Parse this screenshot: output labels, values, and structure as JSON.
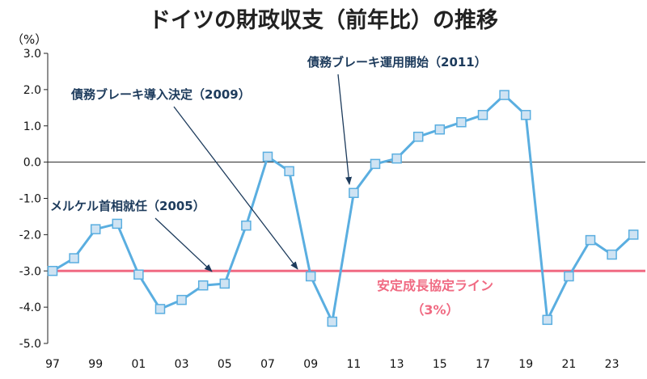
{
  "chart_data": {
    "type": "line",
    "title": "ドイツの財政収支（前年比）の推移",
    "yunit": "（%）",
    "ylim": [
      -5.0,
      3.0
    ],
    "yticks": [
      "3.0",
      "2.0",
      "1.0",
      "0.0",
      "-1.0",
      "-2.0",
      "-3.0",
      "-4.0",
      "-5.0"
    ],
    "ytick_values": [
      3,
      2,
      1,
      0,
      -1,
      -2,
      -3,
      -4,
      -5
    ],
    "xticks": [
      "97",
      "99",
      "01",
      "03",
      "05",
      "07",
      "09",
      "11",
      "13",
      "15",
      "17",
      "19",
      "21",
      "23"
    ],
    "xtick_years": [
      1997,
      1999,
      2001,
      2003,
      2005,
      2007,
      2009,
      2011,
      2013,
      2015,
      2017,
      2019,
      2021,
      2023
    ],
    "grid": false,
    "series": [
      {
        "name": "",
        "color": "#5aaee0",
        "marker_fill": "#cfe3f3",
        "x": [
          1997,
          1998,
          1999,
          2000,
          2001,
          2002,
          2003,
          2004,
          2005,
          2006,
          2007,
          2008,
          2009,
          2010,
          2011,
          2012,
          2013,
          2014,
          2015,
          2016,
          2017,
          2018,
          2019,
          2020,
          2021,
          2022,
          2023,
          2024
        ],
        "values": [
          -3.0,
          -2.65,
          -1.85,
          -1.7,
          -3.1,
          -4.05,
          -3.8,
          -3.4,
          -3.35,
          -1.75,
          0.15,
          -0.25,
          -3.15,
          -4.4,
          -0.85,
          -0.05,
          0.1,
          0.7,
          0.9,
          1.1,
          1.3,
          1.85,
          1.3,
          -4.35,
          -3.15,
          -2.15,
          -2.55,
          -2.0
        ]
      }
    ],
    "reference_line": {
      "value": -3.0,
      "label": "安定成長協定ライン",
      "sublabel": "（3%）",
      "color": "#f06a82"
    },
    "annotations": [
      {
        "text": "債務ブレーキ運用開始（2011）",
        "target_x": 2010.85,
        "target_y": -0.55
      },
      {
        "text": "債務ブレーキ導入決定（2009）",
        "target_x": 2008.8,
        "target_y": -2.95
      },
      {
        "text": "メルケル首相就任（2005）",
        "target_x": 2004.6,
        "target_y": -3.0
      }
    ]
  }
}
